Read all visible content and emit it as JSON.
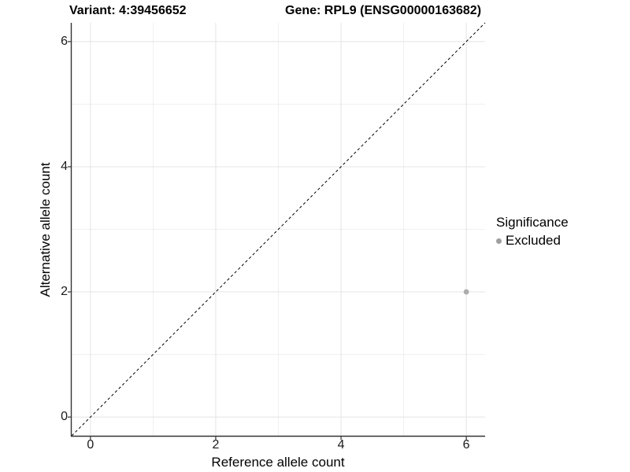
{
  "chart_data": {
    "type": "scatter",
    "title_variant": "Variant: 4:39456652",
    "title_gene": "Gene: RPL9 (ENSG00000163682)",
    "xlabel": "Reference allele count",
    "ylabel": "Alternative allele count",
    "xlim": [
      -0.3,
      6.3
    ],
    "ylim": [
      -0.3,
      6.3
    ],
    "major_ticks": [
      0,
      2,
      4,
      6
    ],
    "minor_ticks": [
      1,
      3,
      5
    ],
    "grid": "major and minor, light gray on white panel",
    "legend_position": "right",
    "identity_line": {
      "description": "dashed y=x reference line from panel corner to corner",
      "style": "dashed",
      "color": "#000000"
    },
    "series": [
      {
        "name": "Excluded",
        "color": "#adadad",
        "points": [
          [
            6,
            2
          ]
        ]
      }
    ],
    "legend": {
      "title": "Significance",
      "entries": [
        {
          "label": "Excluded",
          "color": "#9e9e9e"
        }
      ]
    },
    "colors": {
      "background": "#ffffff",
      "grid_major": "#e4e4e4",
      "grid_minor": "#f0f0f0",
      "axis_line": "#333333",
      "tick_mark": "#333333",
      "text": "#000000"
    }
  }
}
